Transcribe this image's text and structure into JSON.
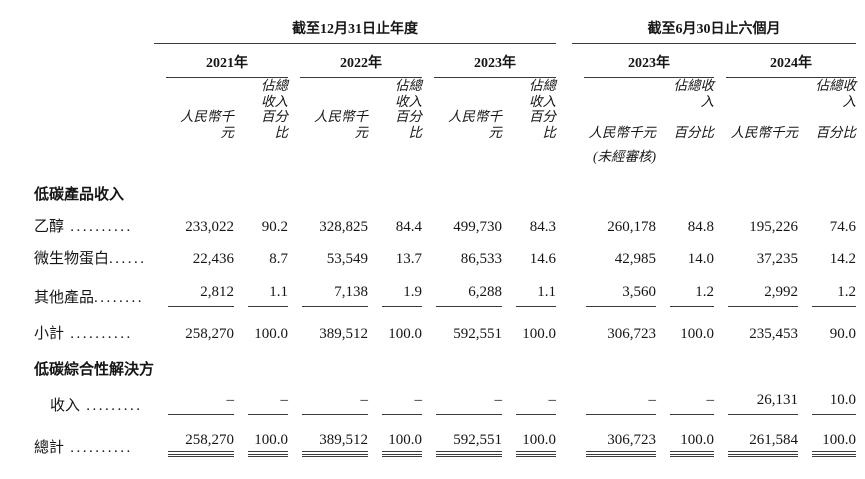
{
  "page": {
    "background_color": "#ffffff",
    "text_color": "#151515",
    "rule_color": "#3c3c3c"
  },
  "header": {
    "annual_title": "截至12月31日止年度",
    "interim_title": "截至6月30日止六個月",
    "years": [
      "2021年",
      "2022年",
      "2023年",
      "2023年",
      "2024年"
    ],
    "pct_label_line1": "佔總收入",
    "pct_label_line2": "百分比",
    "rmb_label": "人民幣千元",
    "unaudited_note": "(未經審核)"
  },
  "sections": {
    "products_header": "低碳產品收入",
    "solutions_header": "低碳綜合性解決方案"
  },
  "rows": [
    {
      "label": "乙醇",
      "dots": " ..........",
      "v": [
        "233,022",
        "90.2",
        "328,825",
        "84.4",
        "499,730",
        "84.3",
        "260,178",
        "84.8",
        "195,226",
        "74.6"
      ]
    },
    {
      "label": "微生物蛋白",
      "dots": "......",
      "v": [
        "22,436",
        "8.7",
        "53,549",
        "13.7",
        "86,533",
        "14.6",
        "42,985",
        "14.0",
        "37,235",
        "14.2"
      ]
    },
    {
      "label": "其他產品",
      "dots": "........",
      "v": [
        "2,812",
        "1.1",
        "7,138",
        "1.9",
        "6,288",
        "1.1",
        "3,560",
        "1.2",
        "2,992",
        "1.2"
      ]
    },
    {
      "label": "小計",
      "dots": " ..........",
      "v": [
        "258,270",
        "100.0",
        "389,512",
        "100.0",
        "592,551",
        "100.0",
        "306,723",
        "100.0",
        "235,453",
        "90.0"
      ]
    },
    {
      "label": "收入",
      "dots": " .........",
      "v": [
        "–",
        "–",
        "–",
        "–",
        "–",
        "–",
        "–",
        "–",
        "26,131",
        "10.0"
      ]
    },
    {
      "label": "總計",
      "dots": " ..........",
      "v": [
        "258,270",
        "100.0",
        "389,512",
        "100.0",
        "592,551",
        "100.0",
        "306,723",
        "100.0",
        "261,584",
        "100.0"
      ]
    }
  ]
}
